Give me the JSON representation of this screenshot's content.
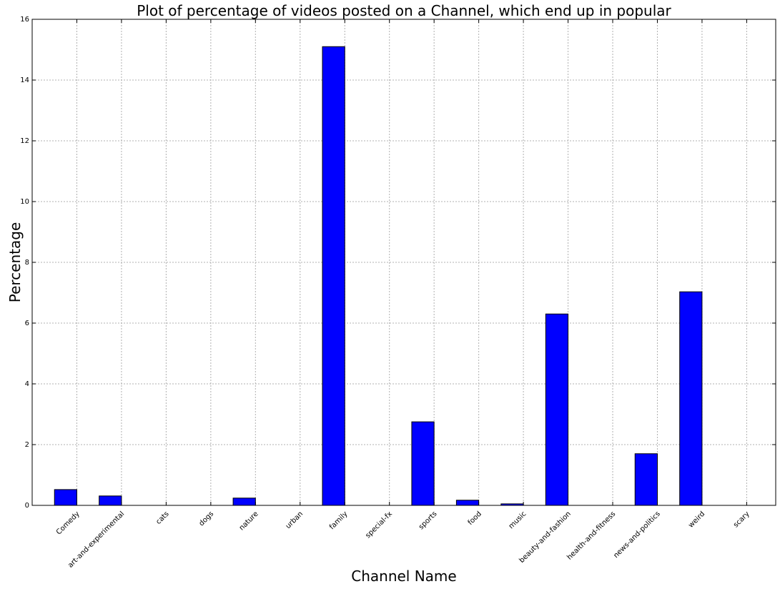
{
  "chart_data": {
    "type": "bar",
    "title": "Plot of percentage of videos posted on a Channel, which end up in popular",
    "xlabel": "Channel Name",
    "ylabel": "Percentage",
    "categories": [
      "Comedy",
      "art-and-experimental",
      "cats",
      "dogs",
      "nature",
      "urban",
      "family",
      "special-fx",
      "sports",
      "food",
      "music",
      "beauty-and-fashion",
      "health-and-fitness",
      "news-and-politics",
      "weird",
      "scary"
    ],
    "values": [
      0.52,
      0.31,
      0.0,
      0.0,
      0.24,
      0.0,
      15.1,
      0.0,
      2.75,
      0.17,
      0.05,
      6.3,
      0.0,
      1.7,
      7.03,
      0.0
    ],
    "ylim": [
      0,
      16
    ],
    "yticks": [
      "0",
      "2",
      "4",
      "6",
      "8",
      "10",
      "12",
      "14",
      "16"
    ],
    "grid": true,
    "bar_color": "#0000ff",
    "bar_edge_color": "#000000"
  }
}
